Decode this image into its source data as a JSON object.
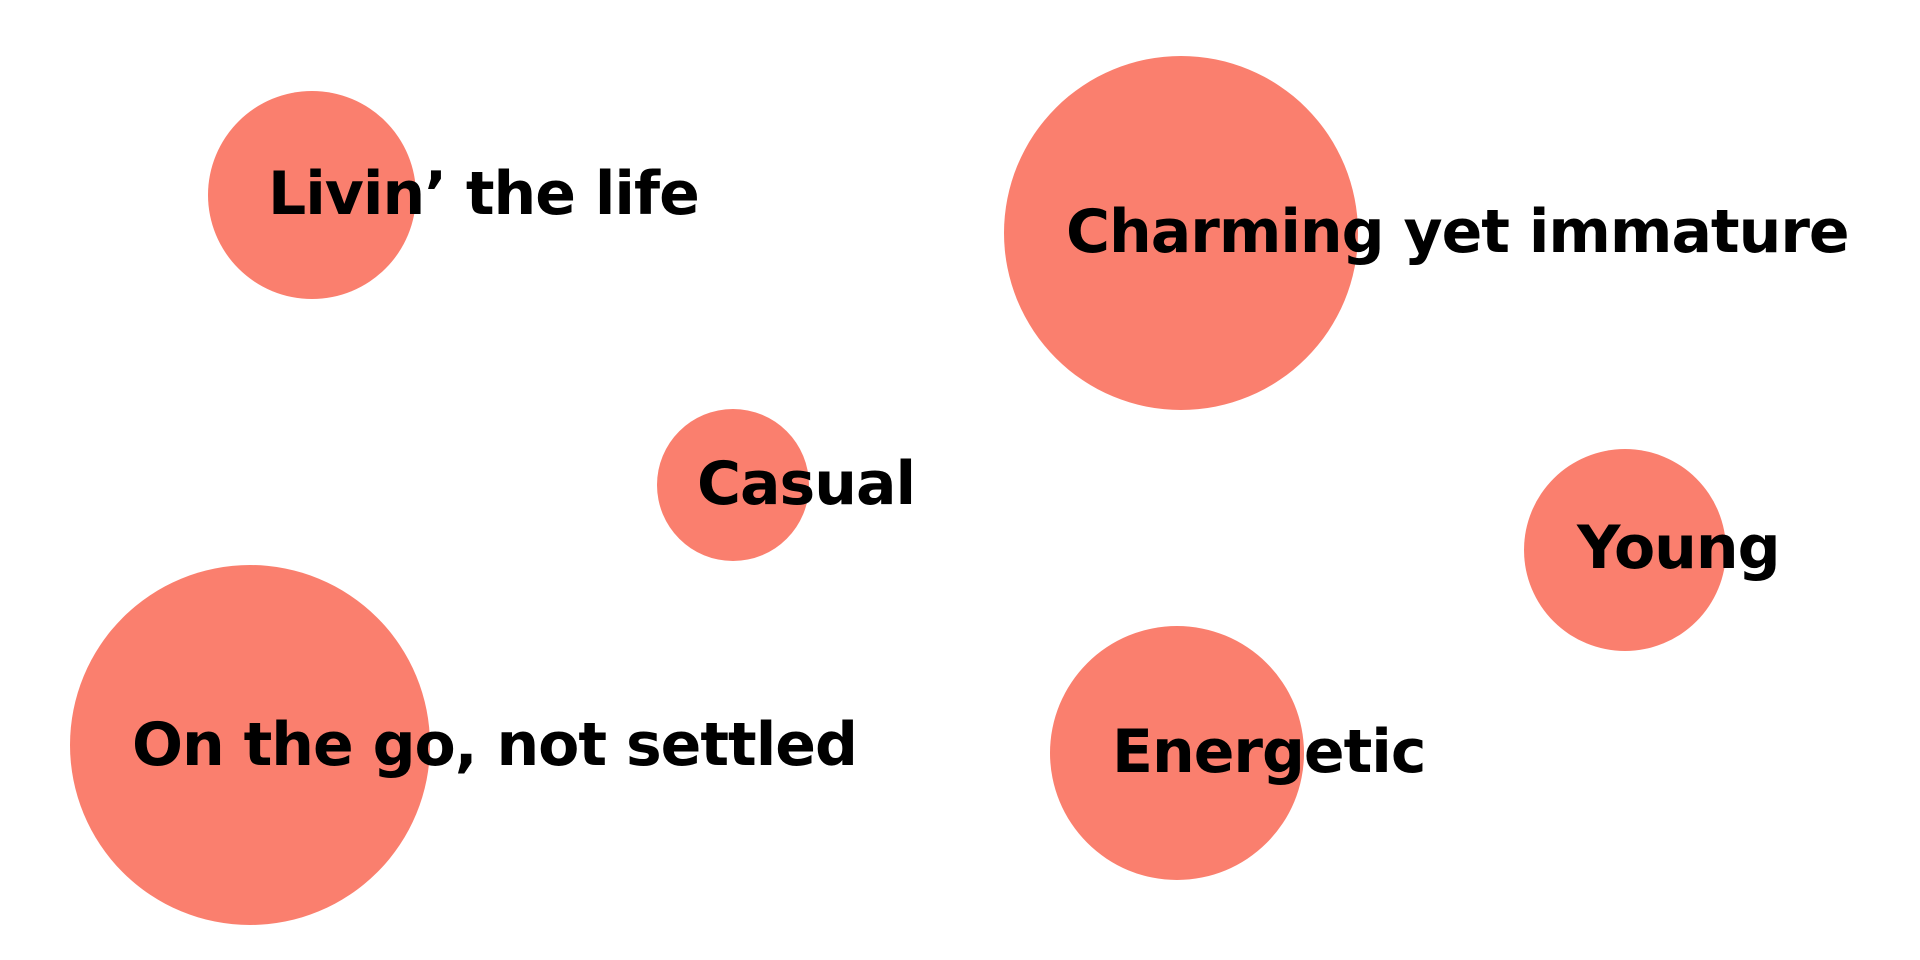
{
  "colors": {
    "bubble": "#FA7F6E",
    "text": "#000000",
    "background": "#FFFFFF"
  },
  "bubbles": [
    {
      "label": "Livin’ the life"
    },
    {
      "label": "Charming yet immature"
    },
    {
      "label": "Casual"
    },
    {
      "label": "Young"
    },
    {
      "label": "On the go, not settled"
    },
    {
      "label": "Energetic"
    }
  ]
}
